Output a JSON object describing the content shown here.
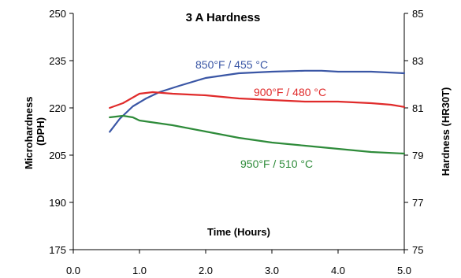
{
  "chart_data": {
    "type": "line",
    "title": "3 A Hardness",
    "xlabel": "Time (Hours)",
    "ylabel_left": "Microhardness\n(DPH)",
    "ylabel_right": "Hardness (HR30T)",
    "xlim": [
      0.0,
      5.0
    ],
    "ylim": [
      175,
      250
    ],
    "ylim_right": [
      75,
      85
    ],
    "x_ticks": [
      "0.0",
      "1.0",
      "2.0",
      "3.0",
      "4.0",
      "5.0"
    ],
    "y_ticks": [
      "175",
      "190",
      "205",
      "220",
      "235",
      "250"
    ],
    "y_ticks_right": [
      "75",
      "77",
      "79",
      "81",
      "83",
      "85"
    ],
    "grid": false,
    "legend": "none",
    "series": [
      {
        "name": "850°F / 455 °C",
        "color": "#3a56a5",
        "x": [
          0.55,
          0.7,
          0.9,
          1.1,
          1.3,
          1.6,
          2.0,
          2.5,
          3.0,
          3.5,
          3.75,
          4.0,
          4.5,
          5.0
        ],
        "y": [
          212.4,
          216.5,
          220.5,
          223.0,
          225.0,
          227.0,
          229.5,
          231.0,
          231.5,
          231.8,
          231.8,
          231.5,
          231.5,
          231.0
        ]
      },
      {
        "name": "900°F / 480 °C",
        "color": "#e02b2b",
        "x": [
          0.55,
          0.75,
          1.0,
          1.2,
          1.5,
          2.0,
          2.5,
          3.0,
          3.5,
          4.0,
          4.5,
          4.8,
          5.0
        ],
        "y": [
          220.0,
          221.5,
          224.5,
          225.0,
          224.5,
          224.0,
          223.0,
          222.5,
          222.0,
          222.0,
          221.5,
          221.0,
          220.3
        ]
      },
      {
        "name": "950°F / 510 °C",
        "color": "#2e8b3a",
        "x": [
          0.55,
          0.75,
          0.9,
          1.0,
          1.5,
          2.0,
          2.5,
          3.0,
          3.5,
          4.0,
          4.5,
          5.0
        ],
        "y": [
          217.0,
          217.5,
          217.0,
          216.0,
          214.5,
          212.5,
          210.5,
          209.0,
          208.0,
          207.0,
          206.0,
          205.5
        ]
      }
    ]
  }
}
